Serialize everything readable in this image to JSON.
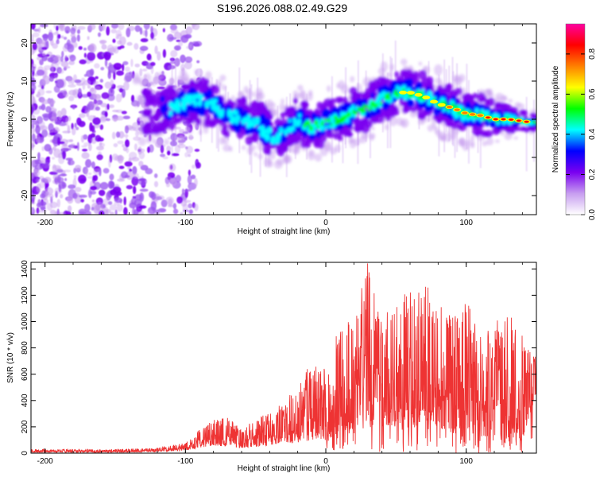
{
  "figure_title": "S196.2026.088.02.49.G29",
  "chart_data": [
    {
      "type": "heatmap",
      "title": "S196.2026.088.02.49.G29",
      "xlabel": "Height of straight line (km)",
      "ylabel": "Frequency (Hz)",
      "xlim": [
        -210,
        150
      ],
      "ylim": [
        -25,
        25
      ],
      "x_ticks": [
        -200,
        -100,
        0,
        100
      ],
      "y_ticks": [
        -20,
        -10,
        0,
        10,
        20
      ],
      "ridge_center_frequency": {
        "x": [
          -130,
          -110,
          -95,
          -80,
          -70,
          -60,
          -50,
          -40,
          -35,
          -30,
          -20,
          -10,
          0,
          10,
          20,
          30,
          40,
          50,
          60,
          70,
          80,
          90,
          100,
          110,
          120,
          130,
          140,
          150
        ],
        "hz": [
          2,
          3,
          5,
          4,
          1,
          0,
          -1,
          -4,
          -5,
          -3,
          0,
          -2,
          -1,
          0,
          2,
          3,
          5,
          7,
          7,
          6,
          4,
          3,
          1.5,
          1,
          0,
          0,
          -0.5,
          -1
        ]
      },
      "colorbar": {
        "label": "Normalized spectral amplitude",
        "range": [
          0,
          0.95
        ],
        "ticks": [
          0,
          0.2,
          0.4,
          0.6,
          0.8
        ],
        "tick_labels": [
          "0.0",
          "0.2",
          "0.4",
          "0.6",
          "0.8"
        ],
        "colors": [
          "#ffffff",
          "#c79df0",
          "#7a00f0",
          "#0000ff",
          "#00ffff",
          "#00ff00",
          "#ffff00",
          "#ff8000",
          "#ff0000",
          "#ff00a0"
        ]
      }
    },
    {
      "type": "line",
      "xlabel": "Height of straight line (km)",
      "ylabel": "SNR (10 * v/v)",
      "xlim": [
        -210,
        150
      ],
      "ylim": [
        0,
        1450
      ],
      "x_ticks": [
        -200,
        -100,
        0,
        100
      ],
      "y_ticks": [
        0,
        200,
        400,
        600,
        800,
        1000,
        1200,
        1400
      ],
      "series": [
        {
          "name": "SNR",
          "color": "#ee3333",
          "envelope_x": [
            -210,
            -150,
            -120,
            -100,
            -90,
            -80,
            -70,
            -60,
            -50,
            -40,
            -30,
            -20,
            -10,
            0,
            10,
            20,
            30,
            40,
            50,
            60,
            70,
            80,
            90,
            100,
            110,
            120,
            130,
            140,
            150
          ],
          "envelope_max": [
            30,
            30,
            40,
            80,
            180,
            250,
            280,
            180,
            260,
            330,
            380,
            520,
            700,
            650,
            1000,
            1050,
            1450,
            1050,
            1150,
            1250,
            1330,
            1150,
            1050,
            1200,
            900,
            1000,
            1100,
            900,
            720
          ],
          "envelope_min": [
            5,
            5,
            10,
            20,
            40,
            60,
            50,
            40,
            50,
            60,
            80,
            80,
            100,
            100,
            150,
            200,
            250,
            200,
            250,
            200,
            250,
            200,
            150,
            150,
            120,
            150,
            120,
            100,
            450
          ]
        }
      ]
    }
  ]
}
